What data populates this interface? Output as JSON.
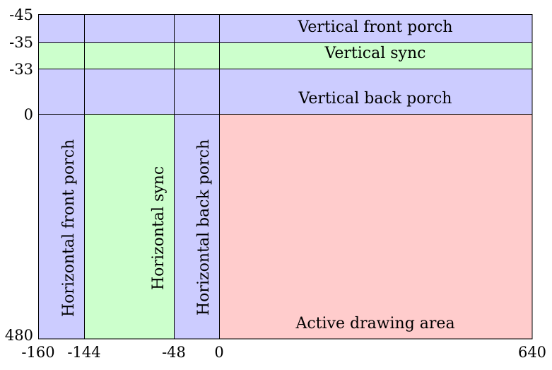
{
  "ticks": {
    "x": [
      "-160",
      "-144",
      "-48",
      "0",
      "640"
    ],
    "y": [
      "-45",
      "-35",
      "-33",
      "0",
      "480"
    ]
  },
  "regions": {
    "vertical_front_porch": "Vertical front porch",
    "vertical_sync": "Vertical sync",
    "vertical_back_porch": "Vertical back porch",
    "horizontal_front_porch": "Horizontal front porch",
    "horizontal_sync": "Horizontal sync",
    "horizontal_back_porch": "Horizontal back porch",
    "active_area": "Active drawing area"
  },
  "colors": {
    "porch": "#ccccff",
    "sync": "#ccffcc",
    "active": "#ffcccc",
    "grid": "#000000"
  }
}
